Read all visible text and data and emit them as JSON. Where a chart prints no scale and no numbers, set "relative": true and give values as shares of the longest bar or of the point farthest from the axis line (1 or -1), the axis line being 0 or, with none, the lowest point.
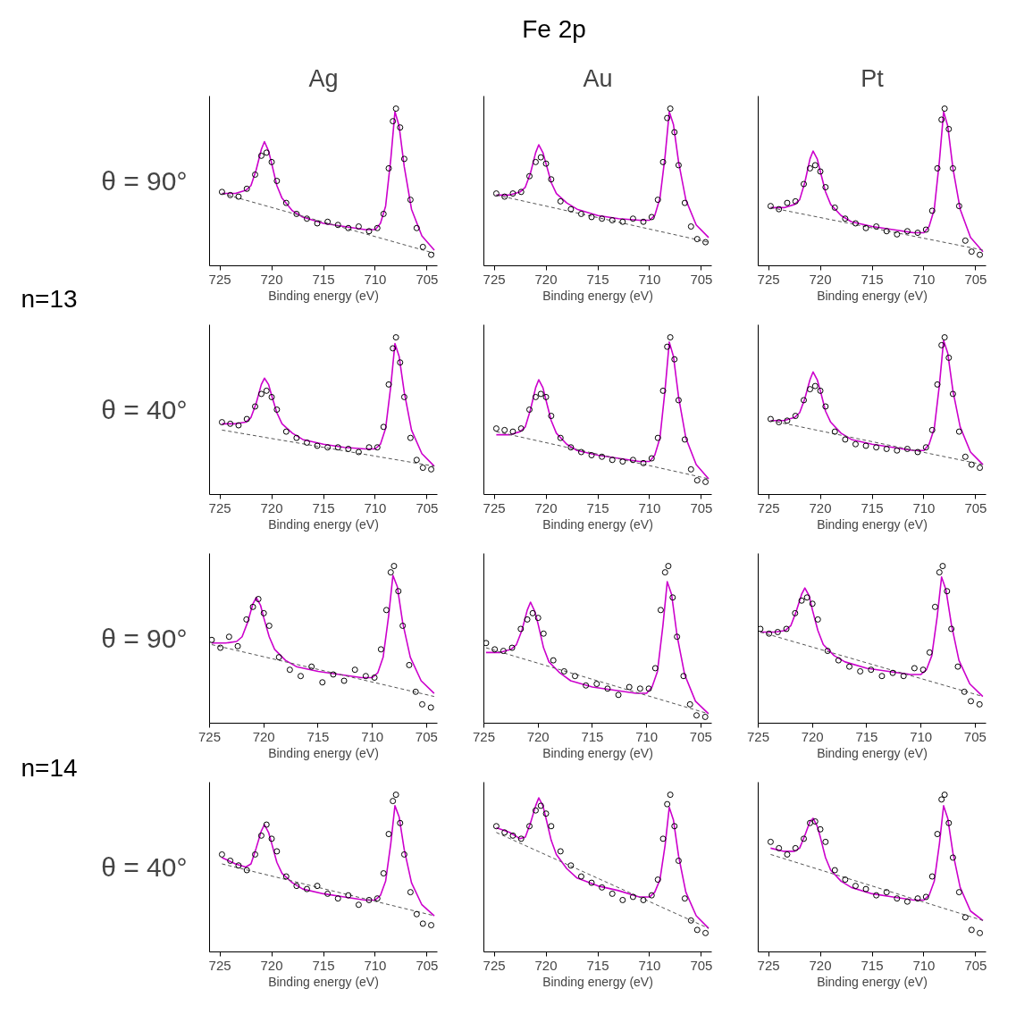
{
  "chart_data": [
    {
      "type": "scatter",
      "relative": true,
      "title": "Ag",
      "ylabel": "θ = 90°",
      "annotations": [
        "Fe 2p",
        "n=13"
      ],
      "xlabel": "Binding energy (eV)",
      "xlim": [
        726,
        704
      ],
      "xticks": [
        725,
        720,
        715,
        710,
        705
      ],
      "series": [
        {
          "type": "scatter",
          "marker": "circle",
          "color": "#000000",
          "x": [
            724.8,
            724,
            723.2,
            722.4,
            721.6,
            721,
            720.5,
            720,
            719.5,
            718.6,
            717.6,
            716.6,
            715.6,
            714.6,
            713.6,
            712.6,
            711.6,
            710.6,
            709.8,
            709.2,
            708.7,
            708.3,
            708,
            707.6,
            707.2,
            706.6,
            706,
            705.4,
            704.6
          ],
          "values": [
            0.47,
            0.45,
            0.44,
            0.49,
            0.58,
            0.7,
            0.72,
            0.66,
            0.54,
            0.4,
            0.33,
            0.3,
            0.27,
            0.28,
            0.26,
            0.24,
            0.25,
            0.22,
            0.24,
            0.33,
            0.62,
            0.92,
            1.0,
            0.88,
            0.68,
            0.42,
            0.24,
            0.12,
            0.07
          ]
        },
        {
          "type": "line",
          "color": "#cc00cc",
          "x": [
            724.8,
            723.5,
            722.5,
            722,
            721.5,
            721,
            720.7,
            720.3,
            720,
            719.5,
            719,
            718,
            717,
            715,
            713,
            711,
            710,
            709.5,
            709,
            708.5,
            708.1,
            707.7,
            707.2,
            706.5,
            705.5,
            704.3
          ],
          "values": [
            0.46,
            0.46,
            0.48,
            0.51,
            0.61,
            0.74,
            0.79,
            0.73,
            0.65,
            0.51,
            0.43,
            0.35,
            0.31,
            0.27,
            0.25,
            0.23,
            0.23,
            0.27,
            0.38,
            0.68,
            0.98,
            0.89,
            0.63,
            0.36,
            0.19,
            0.1
          ]
        },
        {
          "type": "line",
          "color": "#555555",
          "line_style": "dashed",
          "x": [
            724.8,
            704.3
          ],
          "values": [
            0.46,
            0.08
          ]
        }
      ]
    },
    {
      "type": "scatter",
      "relative": true,
      "title": "Au",
      "xlabel": "Binding energy (eV)",
      "xlim": [
        726,
        704
      ],
      "xticks": [
        725,
        720,
        715,
        710,
        705
      ],
      "series": [
        {
          "type": "scatter",
          "marker": "circle",
          "color": "#000000",
          "x": [
            724.8,
            724,
            723.2,
            722.4,
            721.6,
            721,
            720.5,
            720,
            719.5,
            718.6,
            717.6,
            716.6,
            715.6,
            714.6,
            713.6,
            712.6,
            711.6,
            710.6,
            709.8,
            709.2,
            708.7,
            708.3,
            708,
            707.6,
            707.2,
            706.6,
            706,
            705.4,
            704.6
          ],
          "values": [
            0.46,
            0.44,
            0.46,
            0.47,
            0.57,
            0.66,
            0.69,
            0.65,
            0.55,
            0.41,
            0.36,
            0.33,
            0.31,
            0.3,
            0.29,
            0.28,
            0.3,
            0.28,
            0.31,
            0.42,
            0.66,
            0.94,
            1.0,
            0.85,
            0.64,
            0.4,
            0.25,
            0.17,
            0.15
          ]
        },
        {
          "type": "line",
          "color": "#cc00cc",
          "x": [
            724.8,
            723.5,
            722.5,
            722,
            721.5,
            721,
            720.7,
            720.3,
            720,
            719.5,
            719,
            718,
            717,
            715,
            713,
            711,
            710,
            709.5,
            709,
            708.5,
            708.1,
            707.7,
            707.2,
            706.5,
            705.5,
            704.3
          ],
          "values": [
            0.45,
            0.45,
            0.47,
            0.5,
            0.59,
            0.72,
            0.77,
            0.72,
            0.65,
            0.53,
            0.46,
            0.4,
            0.36,
            0.32,
            0.3,
            0.29,
            0.29,
            0.32,
            0.43,
            0.7,
            0.98,
            0.9,
            0.66,
            0.42,
            0.26,
            0.18
          ]
        },
        {
          "type": "line",
          "color": "#555555",
          "line_style": "dashed",
          "x": [
            724.8,
            704.3
          ],
          "values": [
            0.45,
            0.15
          ]
        }
      ]
    },
    {
      "type": "scatter",
      "relative": true,
      "title": "Pt",
      "xlabel": "Binding energy (eV)",
      "xlim": [
        726,
        704
      ],
      "xticks": [
        725,
        720,
        715,
        710,
        705
      ],
      "series": [
        {
          "type": "scatter",
          "marker": "circle",
          "color": "#000000",
          "x": [
            724.8,
            724,
            723.2,
            722.4,
            721.6,
            721,
            720.5,
            720,
            719.5,
            718.6,
            717.6,
            716.6,
            715.6,
            714.6,
            713.6,
            712.6,
            711.6,
            710.6,
            709.8,
            709.2,
            708.7,
            708.3,
            708,
            707.6,
            707.2,
            706.6,
            706,
            705.4,
            704.6
          ],
          "values": [
            0.38,
            0.36,
            0.4,
            0.41,
            0.52,
            0.62,
            0.64,
            0.6,
            0.5,
            0.37,
            0.3,
            0.27,
            0.24,
            0.25,
            0.22,
            0.2,
            0.22,
            0.21,
            0.23,
            0.35,
            0.62,
            0.93,
            1.0,
            0.87,
            0.62,
            0.38,
            0.16,
            0.09,
            0.07
          ]
        },
        {
          "type": "line",
          "color": "#cc00cc",
          "x": [
            724.8,
            723.5,
            722.5,
            722,
            721.5,
            721,
            720.7,
            720.3,
            720,
            719.5,
            719,
            718,
            717,
            715,
            713,
            711,
            710,
            709.5,
            709,
            708.5,
            708.1,
            707.7,
            707.2,
            706.5,
            705.5,
            704.3
          ],
          "values": [
            0.37,
            0.37,
            0.39,
            0.42,
            0.53,
            0.68,
            0.73,
            0.68,
            0.6,
            0.47,
            0.39,
            0.32,
            0.28,
            0.25,
            0.23,
            0.21,
            0.21,
            0.25,
            0.36,
            0.67,
            0.98,
            0.89,
            0.62,
            0.36,
            0.18,
            0.09
          ]
        },
        {
          "type": "line",
          "color": "#555555",
          "line_style": "dashed",
          "x": [
            724.8,
            704.3
          ],
          "values": [
            0.37,
            0.1
          ]
        }
      ]
    },
    {
      "type": "scatter",
      "relative": true,
      "ylabel": "θ = 40°",
      "xlabel": "Binding energy (eV)",
      "xlim": [
        726,
        704
      ],
      "xticks": [
        725,
        720,
        715,
        710,
        705
      ],
      "series": [
        {
          "type": "scatter",
          "marker": "circle",
          "color": "#000000",
          "x": [
            724.8,
            724,
            723.2,
            722.4,
            721.6,
            721,
            720.5,
            720,
            719.5,
            718.6,
            717.6,
            716.6,
            715.6,
            714.6,
            713.6,
            712.6,
            711.6,
            710.6,
            709.8,
            709.2,
            708.7,
            708.3,
            708,
            707.6,
            707.2,
            706.6,
            706,
            705.4,
            704.6
          ],
          "values": [
            0.46,
            0.45,
            0.44,
            0.48,
            0.56,
            0.64,
            0.66,
            0.62,
            0.54,
            0.4,
            0.36,
            0.33,
            0.31,
            0.3,
            0.3,
            0.29,
            0.27,
            0.3,
            0.3,
            0.43,
            0.7,
            0.93,
            1.0,
            0.84,
            0.62,
            0.36,
            0.22,
            0.17,
            0.16
          ]
        },
        {
          "type": "line",
          "color": "#cc00cc",
          "x": [
            724.8,
            723.5,
            722.5,
            722,
            721.5,
            721,
            720.7,
            720.3,
            720,
            719.5,
            719,
            718,
            717,
            715,
            713,
            711,
            710,
            709.5,
            709,
            708.5,
            708.1,
            707.7,
            707.2,
            706.5,
            705.5,
            704.3
          ],
          "values": [
            0.45,
            0.45,
            0.46,
            0.49,
            0.58,
            0.7,
            0.74,
            0.7,
            0.63,
            0.52,
            0.45,
            0.39,
            0.35,
            0.32,
            0.3,
            0.29,
            0.29,
            0.32,
            0.42,
            0.69,
            0.96,
            0.88,
            0.65,
            0.41,
            0.26,
            0.18
          ]
        },
        {
          "type": "line",
          "color": "#555555",
          "line_style": "dashed",
          "x": [
            724.8,
            704.3
          ],
          "values": [
            0.41,
            0.18
          ]
        }
      ]
    },
    {
      "type": "scatter",
      "relative": true,
      "xlabel": "Binding energy (eV)",
      "xlim": [
        726,
        704
      ],
      "xticks": [
        725,
        720,
        715,
        710,
        705
      ],
      "series": [
        {
          "type": "scatter",
          "marker": "circle",
          "color": "#000000",
          "x": [
            724.8,
            724,
            723.2,
            722.4,
            721.6,
            721,
            720.5,
            720,
            719.5,
            718.6,
            717.6,
            716.6,
            715.6,
            714.6,
            713.6,
            712.6,
            711.6,
            710.6,
            709.8,
            709.2,
            708.7,
            708.3,
            708,
            707.6,
            707.2,
            706.6,
            706,
            705.4,
            704.6
          ],
          "values": [
            0.42,
            0.41,
            0.4,
            0.42,
            0.54,
            0.62,
            0.64,
            0.62,
            0.5,
            0.36,
            0.3,
            0.27,
            0.25,
            0.24,
            0.22,
            0.21,
            0.22,
            0.2,
            0.23,
            0.36,
            0.66,
            0.94,
            1.0,
            0.86,
            0.6,
            0.35,
            0.16,
            0.09,
            0.08
          ]
        },
        {
          "type": "line",
          "color": "#cc00cc",
          "x": [
            724.8,
            723.5,
            722.5,
            722,
            721.5,
            721,
            720.7,
            720.3,
            720,
            719.5,
            719,
            718,
            717,
            715,
            713,
            711,
            710,
            709.5,
            709,
            708.5,
            708.1,
            707.7,
            707.2,
            706.5,
            705.5,
            704.3
          ],
          "values": [
            0.38,
            0.38,
            0.4,
            0.43,
            0.54,
            0.68,
            0.73,
            0.68,
            0.6,
            0.47,
            0.39,
            0.32,
            0.28,
            0.25,
            0.23,
            0.21,
            0.21,
            0.25,
            0.36,
            0.67,
            0.97,
            0.88,
            0.62,
            0.36,
            0.19,
            0.1
          ]
        },
        {
          "type": "line",
          "color": "#555555",
          "line_style": "dashed",
          "x": [
            724.8,
            704.3
          ],
          "values": [
            0.4,
            0.1
          ]
        }
      ]
    },
    {
      "type": "scatter",
      "relative": true,
      "xlabel": "Binding energy (eV)",
      "xlim": [
        726,
        704
      ],
      "xticks": [
        725,
        720,
        715,
        710,
        705
      ],
      "series": [
        {
          "type": "scatter",
          "marker": "circle",
          "color": "#000000",
          "x": [
            724.8,
            724,
            723.2,
            722.4,
            721.6,
            721,
            720.5,
            720,
            719.5,
            718.6,
            717.6,
            716.6,
            715.6,
            714.6,
            713.6,
            712.6,
            711.6,
            710.6,
            709.8,
            709.2,
            708.7,
            708.3,
            708,
            707.6,
            707.2,
            706.6,
            706,
            705.4,
            704.6
          ],
          "values": [
            0.48,
            0.46,
            0.47,
            0.5,
            0.6,
            0.67,
            0.69,
            0.66,
            0.56,
            0.4,
            0.35,
            0.32,
            0.31,
            0.3,
            0.29,
            0.28,
            0.29,
            0.27,
            0.3,
            0.41,
            0.7,
            0.95,
            1.0,
            0.87,
            0.64,
            0.4,
            0.24,
            0.19,
            0.17
          ]
        },
        {
          "type": "line",
          "color": "#cc00cc",
          "x": [
            724.8,
            723.5,
            722.5,
            722,
            721.5,
            721,
            720.7,
            720.3,
            720,
            719.5,
            719,
            718,
            717,
            715,
            713,
            711,
            710,
            709.5,
            709,
            708.5,
            708.1,
            707.7,
            707.2,
            706.5,
            705.5,
            704.3
          ],
          "values": [
            0.47,
            0.47,
            0.49,
            0.52,
            0.61,
            0.73,
            0.78,
            0.73,
            0.66,
            0.53,
            0.46,
            0.39,
            0.35,
            0.32,
            0.3,
            0.28,
            0.28,
            0.32,
            0.42,
            0.7,
            0.98,
            0.9,
            0.66,
            0.43,
            0.27,
            0.19
          ]
        },
        {
          "type": "line",
          "color": "#555555",
          "line_style": "dashed",
          "x": [
            724.8,
            704.3
          ],
          "values": [
            0.47,
            0.19
          ]
        }
      ]
    },
    {
      "type": "scatter",
      "relative": true,
      "ylabel": "θ = 90°",
      "annotations": [
        "n=14"
      ],
      "xlabel": "Binding energy (eV)",
      "xlim": [
        725,
        704
      ],
      "xticks": [
        725,
        720,
        715,
        710,
        705
      ],
      "series": [
        {
          "type": "scatter",
          "marker": "circle",
          "color": "#000000",
          "x": [
            724.8,
            724,
            723.2,
            722.4,
            721.6,
            721,
            720.5,
            720,
            719.5,
            718.6,
            717.6,
            716.6,
            715.6,
            714.6,
            713.6,
            712.6,
            711.6,
            710.6,
            709.8,
            709.2,
            708.7,
            708.3,
            708,
            707.6,
            707.2,
            706.6,
            706,
            705.4,
            704.6
          ],
          "values": [
            0.53,
            0.48,
            0.55,
            0.49,
            0.66,
            0.74,
            0.79,
            0.7,
            0.62,
            0.42,
            0.34,
            0.3,
            0.36,
            0.26,
            0.31,
            0.27,
            0.34,
            0.3,
            0.29,
            0.47,
            0.72,
            0.96,
            1.0,
            0.84,
            0.62,
            0.37,
            0.2,
            0.12,
            0.1
          ]
        },
        {
          "type": "line",
          "color": "#cc00cc",
          "x": [
            724.8,
            723.5,
            722.5,
            722,
            721.5,
            721,
            720.7,
            720.3,
            720,
            719.5,
            719,
            718,
            717,
            715,
            713,
            711,
            710,
            709.5,
            709,
            708.5,
            708.1,
            707.7,
            707.2,
            706.5,
            705.5,
            704.3
          ],
          "values": [
            0.51,
            0.51,
            0.52,
            0.55,
            0.64,
            0.76,
            0.8,
            0.75,
            0.67,
            0.55,
            0.47,
            0.4,
            0.36,
            0.33,
            0.31,
            0.29,
            0.29,
            0.32,
            0.42,
            0.68,
            0.94,
            0.87,
            0.64,
            0.42,
            0.27,
            0.19
          ]
        },
        {
          "type": "line",
          "color": "#555555",
          "line_style": "dashed",
          "x": [
            724.8,
            704.3
          ],
          "values": [
            0.5,
            0.17
          ]
        }
      ]
    },
    {
      "type": "scatter",
      "relative": true,
      "xlabel": "Binding energy (eV)",
      "xlim": [
        725,
        704
      ],
      "xticks": [
        725,
        720,
        715,
        710,
        705
      ],
      "series": [
        {
          "type": "scatter",
          "marker": "circle",
          "color": "#000000",
          "x": [
            724.8,
            724,
            723.2,
            722.4,
            721.6,
            721,
            720.5,
            720,
            719.5,
            718.6,
            717.6,
            716.6,
            715.6,
            714.6,
            713.6,
            712.6,
            711.6,
            710.6,
            709.8,
            709.2,
            708.7,
            708.3,
            708,
            707.6,
            707.2,
            706.6,
            706,
            705.4,
            704.6
          ],
          "values": [
            0.51,
            0.47,
            0.46,
            0.48,
            0.6,
            0.66,
            0.7,
            0.67,
            0.57,
            0.4,
            0.33,
            0.3,
            0.24,
            0.25,
            0.22,
            0.18,
            0.23,
            0.22,
            0.22,
            0.35,
            0.72,
            0.96,
            1.0,
            0.8,
            0.55,
            0.3,
            0.12,
            0.05,
            0.04
          ]
        },
        {
          "type": "line",
          "color": "#cc00cc",
          "x": [
            724.8,
            723.5,
            722.5,
            722,
            721.5,
            721,
            720.7,
            720.3,
            720,
            719.5,
            719,
            718,
            717,
            715,
            713,
            711,
            710,
            709.5,
            709,
            708.5,
            708.1,
            707.7,
            707.2,
            706.5,
            705.5,
            704.3
          ],
          "values": [
            0.45,
            0.45,
            0.47,
            0.5,
            0.59,
            0.72,
            0.77,
            0.71,
            0.63,
            0.48,
            0.39,
            0.32,
            0.27,
            0.23,
            0.21,
            0.19,
            0.19,
            0.23,
            0.33,
            0.62,
            0.9,
            0.82,
            0.56,
            0.31,
            0.14,
            0.06
          ]
        },
        {
          "type": "line",
          "color": "#555555",
          "line_style": "dashed",
          "x": [
            724.8,
            704.3
          ],
          "values": [
            0.48,
            0.06
          ]
        }
      ]
    },
    {
      "type": "scatter",
      "relative": true,
      "xlabel": "Binding energy (eV)",
      "xlim": [
        725,
        704
      ],
      "xticks": [
        725,
        720,
        715,
        710,
        705
      ],
      "series": [
        {
          "type": "scatter",
          "marker": "circle",
          "color": "#000000",
          "x": [
            724.8,
            724,
            723.2,
            722.4,
            721.6,
            721,
            720.5,
            720,
            719.5,
            718.6,
            717.6,
            716.6,
            715.6,
            714.6,
            713.6,
            712.6,
            711.6,
            710.6,
            709.8,
            709.2,
            708.7,
            708.3,
            708,
            707.6,
            707.2,
            706.6,
            706,
            705.4,
            704.6
          ],
          "values": [
            0.6,
            0.57,
            0.58,
            0.6,
            0.7,
            0.78,
            0.8,
            0.76,
            0.66,
            0.46,
            0.4,
            0.36,
            0.33,
            0.34,
            0.3,
            0.32,
            0.3,
            0.35,
            0.34,
            0.45,
            0.74,
            0.96,
            1.0,
            0.84,
            0.6,
            0.36,
            0.2,
            0.14,
            0.12
          ]
        },
        {
          "type": "line",
          "color": "#cc00cc",
          "x": [
            724.8,
            723.5,
            722.5,
            722,
            721.5,
            721,
            720.7,
            720.3,
            720,
            719.5,
            719,
            718,
            717,
            715,
            713,
            711,
            710,
            709.5,
            709,
            708.5,
            708.1,
            707.7,
            707.2,
            706.5,
            705.5,
            704.3
          ],
          "values": [
            0.58,
            0.58,
            0.59,
            0.62,
            0.71,
            0.82,
            0.86,
            0.81,
            0.72,
            0.59,
            0.5,
            0.43,
            0.39,
            0.35,
            0.33,
            0.31,
            0.31,
            0.34,
            0.43,
            0.68,
            0.93,
            0.85,
            0.63,
            0.4,
            0.25,
            0.17
          ]
        },
        {
          "type": "line",
          "color": "#555555",
          "line_style": "dashed",
          "x": [
            724.8,
            704.3
          ],
          "values": [
            0.58,
            0.17
          ]
        }
      ]
    },
    {
      "type": "scatter",
      "relative": true,
      "ylabel": "θ = 40°",
      "xlabel": "Binding energy (eV)",
      "xlim": [
        726,
        704
      ],
      "xticks": [
        725,
        720,
        715,
        710,
        705
      ],
      "series": [
        {
          "type": "scatter",
          "marker": "circle",
          "color": "#000000",
          "x": [
            724.8,
            724,
            723.2,
            722.4,
            721.6,
            721,
            720.5,
            720,
            719.5,
            718.6,
            717.6,
            716.6,
            715.6,
            714.6,
            713.6,
            712.6,
            711.6,
            710.6,
            709.8,
            709.2,
            708.7,
            708.3,
            708,
            707.6,
            707.2,
            706.6,
            706,
            705.4,
            704.6
          ],
          "values": [
            0.62,
            0.58,
            0.55,
            0.52,
            0.62,
            0.74,
            0.81,
            0.72,
            0.64,
            0.48,
            0.42,
            0.4,
            0.42,
            0.37,
            0.34,
            0.36,
            0.3,
            0.33,
            0.34,
            0.5,
            0.75,
            0.96,
            1.0,
            0.82,
            0.62,
            0.38,
            0.24,
            0.18,
            0.17
          ]
        },
        {
          "type": "line",
          "color": "#cc00cc",
          "x": [
            724.8,
            723.5,
            722.5,
            722,
            721.5,
            721,
            720.7,
            720.3,
            720,
            719.5,
            719,
            718,
            717,
            715,
            713,
            711,
            710,
            709.5,
            709,
            708.5,
            708.1,
            707.7,
            707.2,
            706.5,
            705.5,
            704.3
          ],
          "values": [
            0.6,
            0.56,
            0.54,
            0.56,
            0.66,
            0.77,
            0.81,
            0.76,
            0.69,
            0.57,
            0.5,
            0.44,
            0.4,
            0.37,
            0.35,
            0.33,
            0.33,
            0.36,
            0.45,
            0.69,
            0.93,
            0.86,
            0.65,
            0.44,
            0.3,
            0.23
          ]
        },
        {
          "type": "line",
          "color": "#555555",
          "line_style": "dashed",
          "x": [
            724.8,
            704.3
          ],
          "values": [
            0.56,
            0.23
          ]
        }
      ]
    },
    {
      "type": "scatter",
      "relative": true,
      "xlabel": "Binding energy (eV)",
      "xlim": [
        726,
        704
      ],
      "xticks": [
        725,
        720,
        715,
        710,
        705
      ],
      "series": [
        {
          "type": "scatter",
          "marker": "circle",
          "color": "#000000",
          "x": [
            724.8,
            724,
            723.2,
            722.4,
            721.6,
            721,
            720.5,
            720,
            719.5,
            718.6,
            717.6,
            716.6,
            715.6,
            714.6,
            713.6,
            712.6,
            711.6,
            710.6,
            709.8,
            709.2,
            708.7,
            708.3,
            708,
            707.6,
            707.2,
            706.6,
            706,
            705.4,
            704.6
          ],
          "values": [
            0.8,
            0.76,
            0.74,
            0.72,
            0.8,
            0.9,
            0.93,
            0.88,
            0.8,
            0.64,
            0.55,
            0.48,
            0.44,
            0.41,
            0.37,
            0.33,
            0.35,
            0.33,
            0.36,
            0.46,
            0.72,
            0.94,
            1.0,
            0.8,
            0.58,
            0.34,
            0.2,
            0.14,
            0.12
          ]
        },
        {
          "type": "line",
          "color": "#cc00cc",
          "x": [
            724.8,
            723.5,
            722.5,
            722,
            721.5,
            721,
            720.7,
            720.3,
            720,
            719.5,
            719,
            718,
            717,
            715,
            713,
            711,
            710,
            709.5,
            709,
            708.5,
            708.1,
            707.7,
            707.2,
            706.5,
            705.5,
            704.3
          ],
          "values": [
            0.79,
            0.76,
            0.72,
            0.73,
            0.82,
            0.93,
            0.98,
            0.93,
            0.85,
            0.71,
            0.62,
            0.53,
            0.47,
            0.42,
            0.39,
            0.35,
            0.35,
            0.38,
            0.46,
            0.68,
            0.92,
            0.84,
            0.61,
            0.38,
            0.23,
            0.15
          ]
        },
        {
          "type": "line",
          "color": "#555555",
          "line_style": "dashed",
          "x": [
            724.8,
            704.3
          ],
          "values": [
            0.76,
            0.15
          ]
        }
      ]
    },
    {
      "type": "scatter",
      "relative": true,
      "xlabel": "Binding energy (eV)",
      "xlim": [
        726,
        704
      ],
      "xticks": [
        725,
        720,
        715,
        710,
        705
      ],
      "series": [
        {
          "type": "scatter",
          "marker": "circle",
          "color": "#000000",
          "x": [
            724.8,
            724,
            723.2,
            722.4,
            721.6,
            721,
            720.5,
            720,
            719.5,
            718.6,
            717.6,
            716.6,
            715.6,
            714.6,
            713.6,
            712.6,
            711.6,
            710.6,
            709.8,
            709.2,
            708.7,
            708.3,
            708,
            707.6,
            707.2,
            706.6,
            706,
            705.4,
            704.6
          ],
          "values": [
            0.7,
            0.66,
            0.62,
            0.66,
            0.72,
            0.82,
            0.83,
            0.78,
            0.7,
            0.52,
            0.46,
            0.42,
            0.4,
            0.36,
            0.38,
            0.34,
            0.32,
            0.34,
            0.35,
            0.48,
            0.75,
            0.97,
            1.0,
            0.82,
            0.6,
            0.38,
            0.22,
            0.14,
            0.12
          ]
        },
        {
          "type": "line",
          "color": "#cc00cc",
          "x": [
            724.8,
            723.5,
            722.5,
            722,
            721.5,
            721,
            720.7,
            720.3,
            720,
            719.5,
            719,
            718,
            717,
            715,
            713,
            711,
            710,
            709.5,
            709,
            708.5,
            708.1,
            707.7,
            707.2,
            706.5,
            705.5,
            704.3
          ],
          "values": [
            0.66,
            0.64,
            0.64,
            0.66,
            0.74,
            0.83,
            0.85,
            0.8,
            0.73,
            0.6,
            0.52,
            0.45,
            0.41,
            0.37,
            0.35,
            0.33,
            0.33,
            0.36,
            0.45,
            0.69,
            0.93,
            0.85,
            0.63,
            0.41,
            0.26,
            0.2
          ]
        },
        {
          "type": "line",
          "color": "#555555",
          "line_style": "dashed",
          "x": [
            724.8,
            704.3
          ],
          "values": [
            0.62,
            0.2
          ]
        }
      ]
    }
  ]
}
